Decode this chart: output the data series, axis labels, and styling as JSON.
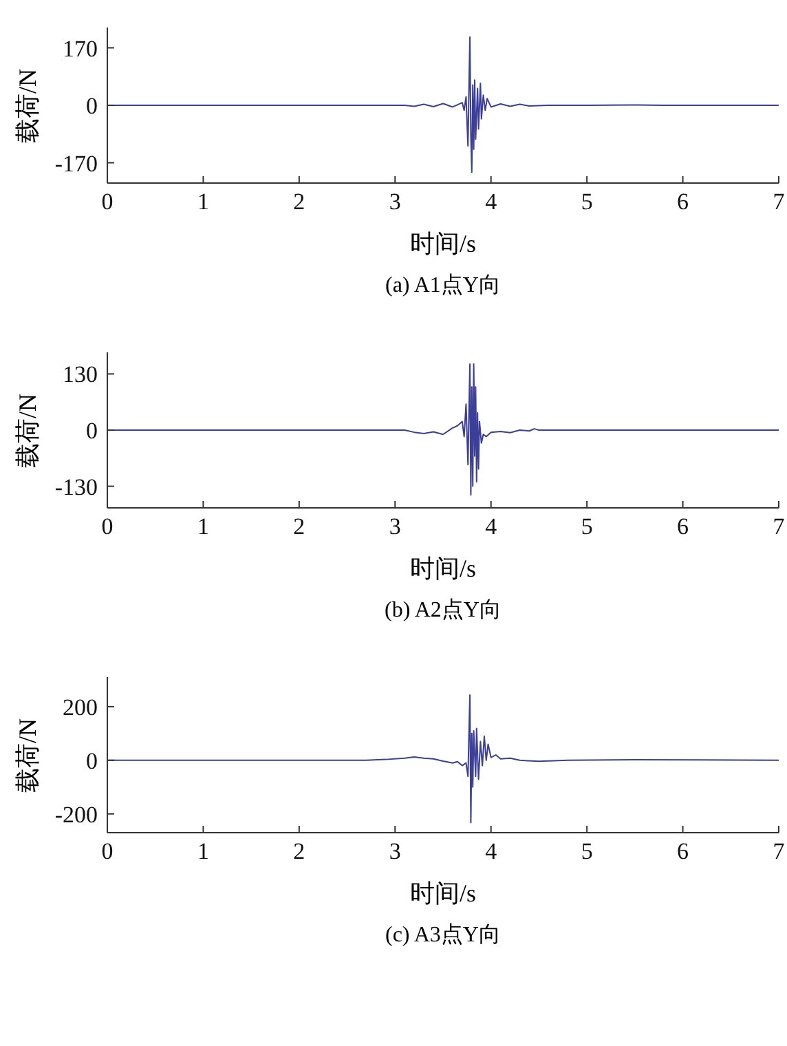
{
  "chart_data": [
    {
      "type": "line",
      "title": "(a) A1点Y向",
      "xlabel": "时间/s",
      "ylabel": "载荷/N",
      "xlim": [
        0,
        7
      ],
      "xticks": [
        0,
        1,
        2,
        3,
        4,
        5,
        6,
        7
      ],
      "ylim": [
        -230,
        230
      ],
      "yticks": [
        -170,
        0,
        170
      ],
      "x": [
        0,
        3.1,
        3.2,
        3.3,
        3.4,
        3.5,
        3.6,
        3.7,
        3.72,
        3.74,
        3.76,
        3.78,
        3.79,
        3.8,
        3.81,
        3.82,
        3.83,
        3.84,
        3.86,
        3.87,
        3.89,
        3.9,
        3.92,
        3.94,
        3.96,
        4.0,
        4.1,
        4.2,
        4.3,
        4.4,
        4.6,
        5,
        5.5,
        5.8,
        7
      ],
      "series": [
        {
          "color": "#3b3f99",
          "values": [
            0,
            0,
            -3,
            3,
            -4,
            5,
            -5,
            8,
            -15,
            25,
            -120,
            202,
            -90,
            -198,
            60,
            -130,
            75,
            -100,
            50,
            -70,
            65,
            -40,
            30,
            -15,
            20,
            -5,
            4,
            -3,
            3,
            -2,
            0,
            0,
            1,
            0,
            0
          ]
        }
      ]
    },
    {
      "type": "line",
      "title": "(b) A2点Y向",
      "xlabel": "时间/s",
      "ylabel": "载荷/N",
      "xlim": [
        0,
        7
      ],
      "xticks": [
        0,
        1,
        2,
        3,
        4,
        5,
        6,
        7
      ],
      "ylim": [
        -180,
        180
      ],
      "yticks": [
        -130,
        0,
        130
      ],
      "x": [
        0,
        3.1,
        3.2,
        3.3,
        3.4,
        3.5,
        3.6,
        3.65,
        3.7,
        3.72,
        3.74,
        3.76,
        3.78,
        3.79,
        3.8,
        3.81,
        3.82,
        3.83,
        3.84,
        3.85,
        3.86,
        3.87,
        3.88,
        3.9,
        3.92,
        3.95,
        4.0,
        4.1,
        4.2,
        4.3,
        4.4,
        4.45,
        4.5,
        7
      ],
      "series": [
        {
          "color": "#3b3f99",
          "values": [
            0,
            0,
            -5,
            -8,
            -4,
            -10,
            5,
            10,
            20,
            -15,
            60,
            -80,
            153,
            -150,
            100,
            -130,
            153,
            -60,
            100,
            -120,
            40,
            -90,
            20,
            -30,
            -10,
            -15,
            -5,
            -3,
            -6,
            0,
            -2,
            3,
            0,
            0
          ]
        }
      ]
    },
    {
      "type": "line",
      "title": "(c) A3点Y向",
      "xlabel": "时间/s",
      "ylabel": "载荷/N",
      "xlim": [
        0,
        7
      ],
      "xticks": [
        0,
        1,
        2,
        3,
        4,
        5,
        6,
        7
      ],
      "ylim": [
        -270,
        310
      ],
      "yticks": [
        -200,
        0,
        200
      ],
      "x": [
        0,
        2.7,
        2.9,
        3.1,
        3.2,
        3.3,
        3.4,
        3.5,
        3.6,
        3.65,
        3.7,
        3.74,
        3.76,
        3.78,
        3.79,
        3.8,
        3.81,
        3.82,
        3.84,
        3.85,
        3.87,
        3.89,
        3.91,
        3.93,
        3.95,
        3.97,
        4.0,
        4.05,
        4.1,
        4.2,
        4.3,
        4.5,
        4.8,
        5.5,
        7
      ],
      "series": [
        {
          "color": "#3b3f99",
          "values": [
            0,
            0,
            3,
            8,
            12,
            8,
            5,
            -3,
            -10,
            -5,
            -20,
            -10,
            -60,
            243,
            -233,
            100,
            -100,
            110,
            -60,
            119,
            -71,
            70,
            -20,
            90,
            0,
            60,
            10,
            20,
            5,
            8,
            0,
            -4,
            0,
            2,
            0
          ]
        }
      ]
    }
  ]
}
